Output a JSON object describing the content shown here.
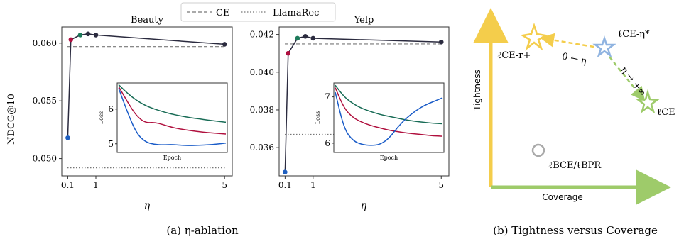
{
  "legend": {
    "ce_label": "CE",
    "llamarec_label": "LlamaRec"
  },
  "ylabel": "NDCG@10",
  "xlabel": "η",
  "inset": {
    "xlabel": "Epoch",
    "ylabel": "Loss"
  },
  "captions": {
    "a": "(a) η-ablation",
    "b": "(b) Tightness versus Coverage"
  },
  "colors": {
    "line": "#2b2b3f",
    "point_cyan": "#1f5fbf",
    "point_red": "#b01040",
    "point_green": "#1d7a5a",
    "point_dark": "#2b2b3f",
    "loss_green": "#176b55",
    "loss_red": "#b0103e",
    "loss_blue": "#1a5cc8",
    "axis_y": "#f4cd4b",
    "axis_x": "#9ecb6a",
    "star_yellow": "#f4cd4b",
    "star_blue": "#8fb3e0",
    "star_green": "#9ecb6a",
    "circle_gray": "#aaaaaa"
  },
  "chart_data": [
    {
      "type": "line",
      "title": "Beauty",
      "x": [
        0.1,
        0.2,
        0.5,
        0.75,
        1.0,
        5.0
      ],
      "x_ticks": [
        "0.1",
        "1",
        "5"
      ],
      "series": [
        {
          "values": [
            0.0518,
            0.0603,
            0.0607,
            0.0608,
            0.0607,
            0.0599
          ]
        }
      ],
      "ce_baseline": 0.0597,
      "llamarec_baseline": 0.0492,
      "ylim": [
        0.0485,
        0.0614
      ],
      "yticks": [
        "0.050",
        "0.055",
        "0.060"
      ],
      "ytick_values": [
        0.05,
        0.055,
        0.06
      ],
      "inset": {
        "xlabel": "Epoch",
        "ylabel": "Loss",
        "yticks": [
          "5",
          "6"
        ],
        "ylim": [
          4.75,
          6.75
        ],
        "green": [
          6.7,
          6.45,
          6.25,
          6.1,
          6.0,
          5.92,
          5.85,
          5.8,
          5.75,
          5.72,
          5.68,
          5.65,
          5.62
        ],
        "red": [
          6.65,
          6.2,
          5.8,
          5.6,
          5.62,
          5.55,
          5.47,
          5.42,
          5.38,
          5.35,
          5.32,
          5.3,
          5.28
        ],
        "blue": [
          6.6,
          5.9,
          5.3,
          5.05,
          4.98,
          4.97,
          4.98,
          4.96,
          4.95,
          4.96,
          4.97,
          4.99,
          5.02
        ]
      }
    },
    {
      "type": "line",
      "title": "Yelp",
      "x": [
        0.1,
        0.2,
        0.5,
        0.75,
        1.0,
        5.0
      ],
      "x_ticks": [
        "0.1",
        "1",
        "5"
      ],
      "series": [
        {
          "values": [
            0.0347,
            0.041,
            0.0418,
            0.0419,
            0.0418,
            0.0416
          ]
        }
      ],
      "ce_baseline": 0.0415,
      "llamarec_baseline": 0.0367,
      "ylim": [
        0.0345,
        0.0424
      ],
      "yticks": [
        "0.036",
        "0.038",
        "0.040",
        "0.042"
      ],
      "ytick_values": [
        0.036,
        0.038,
        0.04,
        0.042
      ],
      "inset": {
        "xlabel": "Epoch",
        "ylabel": "Loss",
        "yticks": [
          "6",
          "7"
        ],
        "ylim": [
          5.8,
          7.3
        ],
        "green": [
          7.25,
          7.0,
          6.85,
          6.75,
          6.68,
          6.62,
          6.58,
          6.54,
          6.5,
          6.47,
          6.45,
          6.43,
          6.42
        ],
        "red": [
          7.2,
          6.75,
          6.55,
          6.45,
          6.38,
          6.33,
          6.28,
          6.25,
          6.22,
          6.2,
          6.18,
          6.16,
          6.15
        ],
        "blue": [
          7.1,
          6.3,
          6.05,
          5.97,
          5.95,
          5.97,
          6.1,
          6.35,
          6.55,
          6.7,
          6.82,
          6.9,
          6.98
        ]
      }
    }
  ],
  "diagram_b": {
    "y_axis_label": "Tightness",
    "x_axis_label": "Coverage",
    "star_yellow_label": "ℓCE-r+",
    "star_blue_label": "ℓCE-η*",
    "star_green_label": "ℓCE",
    "circle_label": "ℓBCE/ℓBPR",
    "arrow_left_label": "0 ← η",
    "arrow_down_label": "η → +∞"
  }
}
